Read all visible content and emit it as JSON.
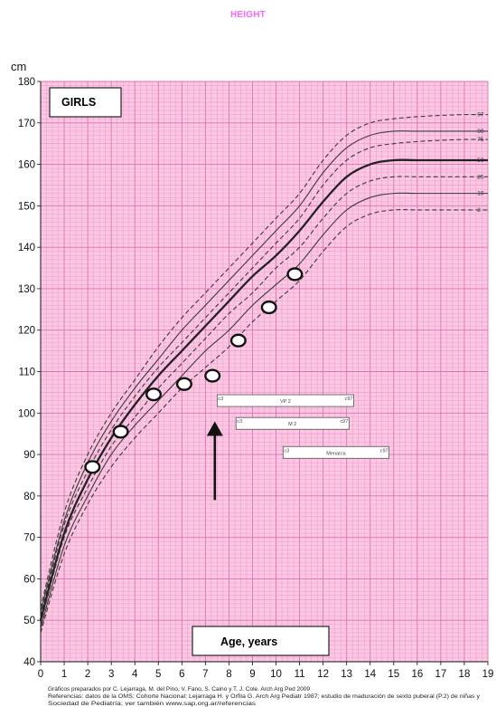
{
  "title": "HEIGHT",
  "chart_data": {
    "type": "line",
    "unit_label": "cm",
    "sex_label": "GIRLS",
    "xlabel": "Age, years",
    "xlim": [
      0,
      19
    ],
    "ylim": [
      40,
      180
    ],
    "x_ticks": [
      "0",
      "1",
      "2",
      "3",
      "4",
      "5",
      "6",
      "7",
      "8",
      "9",
      "10",
      "11",
      "12",
      "13",
      "14",
      "15",
      "16",
      "17",
      "18",
      "19"
    ],
    "y_ticks": [
      "40",
      "50",
      "60",
      "70",
      "80",
      "90",
      "100",
      "110",
      "120",
      "130",
      "140",
      "150",
      "160",
      "170",
      "180"
    ],
    "grid": true,
    "background": "#fbc8e4",
    "grid_minor_color": "#f090c4",
    "grid_major_color": "#e070b0",
    "centile_curves": [
      {
        "name": "97",
        "style": "dashed",
        "ages": [
          0,
          1,
          2,
          3,
          4,
          5,
          6,
          7,
          8,
          9,
          10,
          11,
          12,
          13,
          14,
          15,
          16,
          17,
          18,
          19
        ],
        "values": [
          53,
          76,
          90,
          100,
          108,
          116,
          123,
          129,
          135,
          141,
          147,
          153,
          161,
          167,
          170,
          171,
          171.5,
          171.8,
          172,
          172
        ]
      },
      {
        "name": "90",
        "style": "solid",
        "ages": [
          0,
          1,
          2,
          3,
          4,
          5,
          6,
          7,
          8,
          9,
          10,
          11,
          12,
          13,
          14,
          15,
          16,
          17,
          18,
          19
        ],
        "values": [
          52,
          74,
          88,
          98,
          106,
          113,
          120,
          126,
          132,
          138,
          144,
          150,
          158,
          164,
          167,
          168,
          168,
          168,
          168,
          168
        ]
      },
      {
        "name": "75",
        "style": "dashed",
        "ages": [
          0,
          1,
          2,
          3,
          4,
          5,
          6,
          7,
          8,
          9,
          10,
          11,
          12,
          13,
          14,
          15,
          16,
          17,
          18,
          19
        ],
        "values": [
          51,
          73,
          86,
          96,
          104,
          111,
          117,
          123,
          129,
          135,
          141,
          147,
          155,
          161,
          164,
          165,
          165.5,
          165.8,
          166,
          166
        ]
      },
      {
        "name": "50",
        "style": "bold",
        "ages": [
          0,
          1,
          2,
          3,
          4,
          5,
          6,
          7,
          8,
          9,
          10,
          11,
          12,
          13,
          14,
          15,
          16,
          17,
          18,
          19
        ],
        "values": [
          50,
          71,
          84,
          94,
          102,
          109,
          115,
          121,
          127,
          133,
          138,
          144,
          151,
          157,
          160,
          161,
          161,
          161,
          161,
          161
        ]
      },
      {
        "name": "25",
        "style": "dashed",
        "ages": [
          0,
          1,
          2,
          3,
          4,
          5,
          6,
          7,
          8,
          9,
          10,
          11,
          12,
          13,
          14,
          15,
          16,
          17,
          18,
          19
        ],
        "values": [
          49,
          70,
          82,
          92,
          99,
          106,
          112,
          118,
          124,
          129,
          135,
          140,
          147,
          153,
          156,
          157,
          157,
          157,
          157,
          157
        ]
      },
      {
        "name": "10",
        "style": "solid",
        "ages": [
          0,
          1,
          2,
          3,
          4,
          5,
          6,
          7,
          8,
          9,
          10,
          11,
          12,
          13,
          14,
          15,
          16,
          17,
          18,
          19
        ],
        "values": [
          48,
          68,
          80,
          90,
          97,
          103,
          109,
          115,
          120,
          126,
          131,
          136,
          143,
          149,
          152,
          153,
          153,
          153,
          153,
          153
        ]
      },
      {
        "name": "3",
        "style": "dashed",
        "ages": [
          0,
          1,
          2,
          3,
          4,
          5,
          6,
          7,
          8,
          9,
          10,
          11,
          12,
          13,
          14,
          15,
          16,
          17,
          18,
          19
        ],
        "values": [
          47,
          66,
          78,
          87,
          94,
          100,
          106,
          111,
          116,
          122,
          127,
          132,
          139,
          145,
          148,
          149,
          149,
          149,
          149,
          149
        ]
      }
    ],
    "measurements": {
      "ages": [
        2.2,
        3.4,
        4.8,
        6.1,
        7.3,
        8.4,
        9.7,
        10.8
      ],
      "values": [
        87,
        95.5,
        104.5,
        107,
        109,
        117.5,
        125.5,
        133.5
      ]
    },
    "puberty_bars": [
      {
        "label": "VP 2",
        "start": 7.5,
        "end": 13.3,
        "y": 103,
        "start_label": "c3",
        "end_label": "c97"
      },
      {
        "label": "M 2",
        "start": 8.3,
        "end": 13.1,
        "y": 97.5,
        "start_label": "c3",
        "end_label": "c97"
      },
      {
        "label": "Menarca",
        "start": 10.3,
        "end": 14.8,
        "y": 90.5,
        "start_label": "c3",
        "end_label": "c97"
      }
    ],
    "arrow": {
      "age": 7.4,
      "y_from": 79,
      "y_to": 98
    }
  },
  "footnote": {
    "line1": "Gráficos preparados por C. Lejarraga, M. del Pino, V. Fano, S. Caino y T. J. Cole. Arch Arg Ped 2009",
    "line2": "Referencias: datos de la OMS; Cohorte Nacional; Lejarraga H. y Orfila G. Arch Arg Pediatr 1987; estudio de maduración de sexto puberal (P.2) de niñas y",
    "line3": "Sociedad de Pediatría; ver también www.sap.org.ar/referencias"
  }
}
